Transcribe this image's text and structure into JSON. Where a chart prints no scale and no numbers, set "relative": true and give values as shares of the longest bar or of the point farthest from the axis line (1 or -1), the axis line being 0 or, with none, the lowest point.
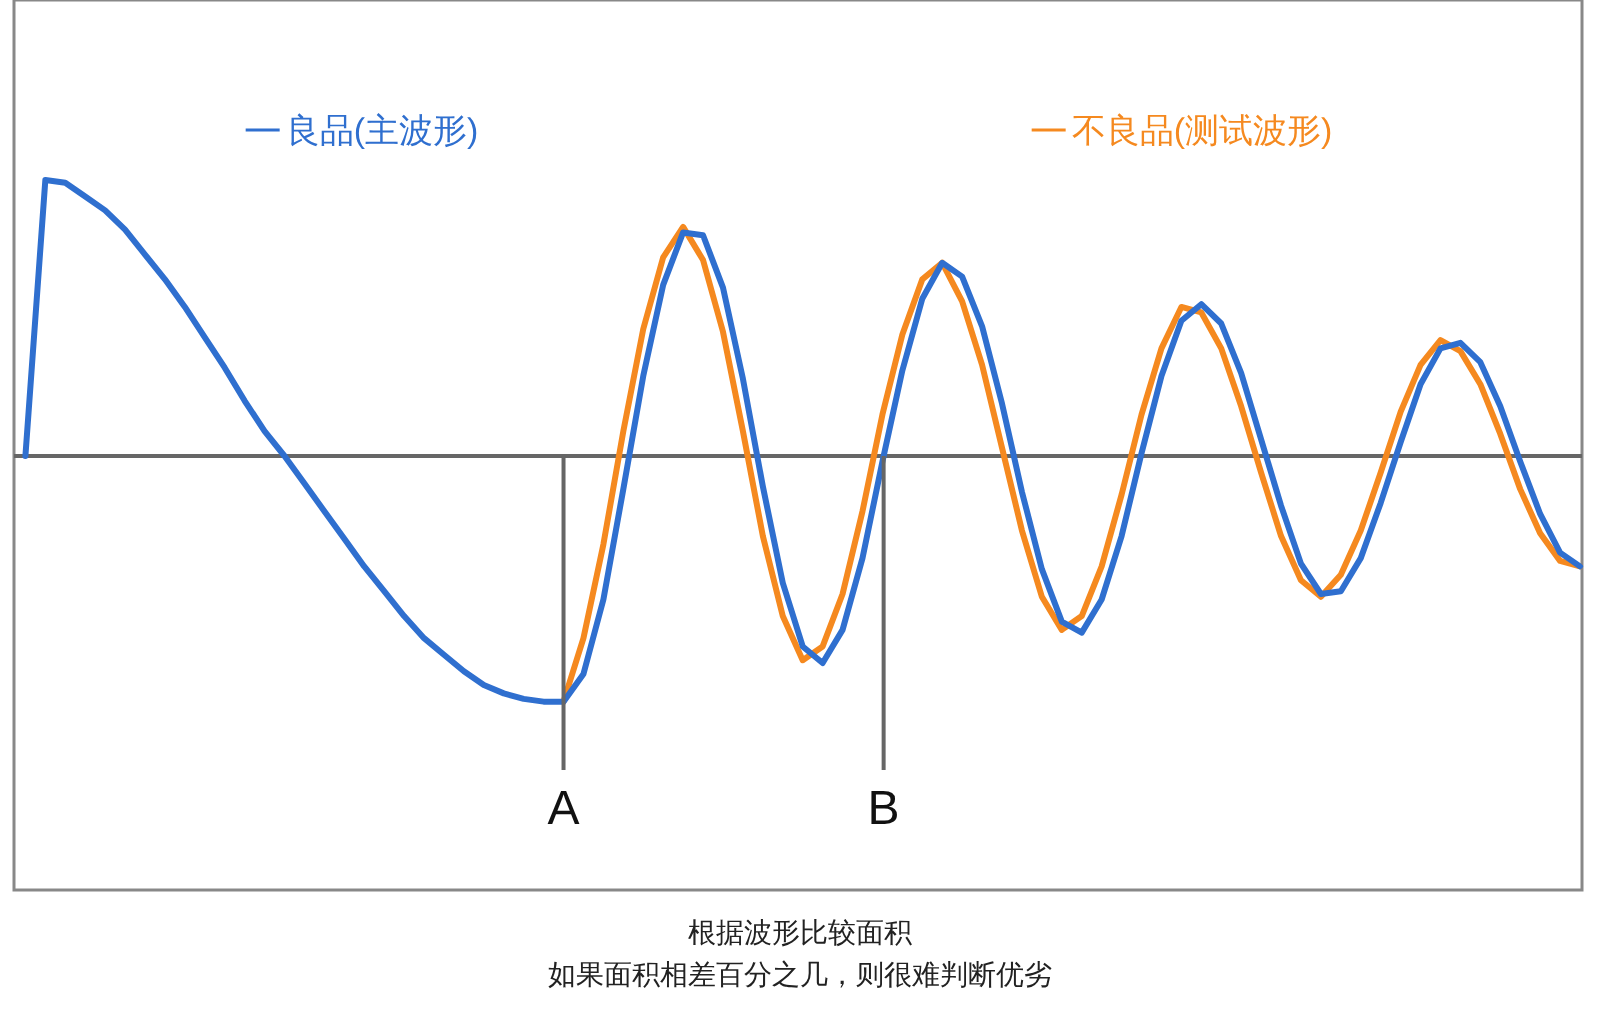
{
  "chart_data": {
    "type": "line",
    "relative": true,
    "legend": "top",
    "line_style": "solid",
    "categories": [
      null,
      null,
      null,
      null,
      null,
      null,
      null,
      null,
      null,
      null,
      null,
      null,
      null,
      null,
      null,
      null,
      null,
      null,
      null,
      null,
      null,
      null,
      null,
      null,
      null,
      null,
      null,
      null,
      null,
      null,
      null,
      null,
      null,
      null,
      null,
      null,
      null,
      null,
      null,
      null,
      null,
      null,
      null,
      null,
      null,
      null,
      null,
      null,
      null,
      null,
      null,
      null,
      null,
      null,
      null,
      null,
      null,
      null,
      null,
      null,
      null,
      null,
      null,
      null,
      null,
      null,
      null,
      null,
      null,
      null,
      null,
      null,
      null,
      null,
      null,
      null,
      null,
      null,
      null
    ],
    "series": [
      {
        "name": "良品(主波形)",
        "color": "#2f6fcf",
        "values": [
          0,
          1.0,
          0.99,
          0.94,
          0.89,
          0.82,
          0.73,
          0.64,
          0.54,
          0.43,
          0.32,
          0.2,
          0.09,
          0.0,
          -0.1,
          -0.2,
          -0.3,
          -0.4,
          -0.49,
          -0.58,
          -0.66,
          -0.72,
          -0.78,
          -0.83,
          -0.86,
          -0.88,
          -0.89,
          -0.89,
          -0.79,
          -0.52,
          -0.12,
          0.29,
          0.62,
          0.81,
          0.8,
          0.61,
          0.28,
          -0.11,
          -0.46,
          -0.69,
          -0.75,
          -0.63,
          -0.37,
          -0.02,
          0.31,
          0.57,
          0.7,
          0.65,
          0.47,
          0.19,
          -0.13,
          -0.41,
          -0.6,
          -0.64,
          -0.52,
          -0.29,
          0.01,
          0.29,
          0.49,
          0.55,
          0.48,
          0.3,
          0.06,
          -0.18,
          -0.39,
          -0.5,
          -0.49,
          -0.37,
          -0.17,
          0.05,
          0.26,
          0.39,
          0.41,
          0.34,
          0.18,
          -0.02,
          -0.21,
          -0.35,
          -0.4
        ]
      },
      {
        "name": "不良品(测试波形)",
        "color": "#f5891f",
        "values": [
          null,
          null,
          null,
          null,
          null,
          null,
          null,
          null,
          null,
          null,
          null,
          null,
          null,
          null,
          null,
          null,
          null,
          null,
          null,
          null,
          null,
          null,
          null,
          null,
          null,
          null,
          null,
          -0.89,
          -0.66,
          -0.32,
          0.09,
          0.46,
          0.72,
          0.83,
          0.71,
          0.45,
          0.09,
          -0.29,
          -0.58,
          -0.74,
          -0.69,
          -0.5,
          -0.2,
          0.15,
          0.44,
          0.64,
          0.7,
          0.56,
          0.33,
          0.03,
          -0.27,
          -0.51,
          -0.63,
          -0.58,
          -0.4,
          -0.14,
          0.15,
          0.39,
          0.54,
          0.52,
          0.39,
          0.18,
          -0.06,
          -0.29,
          -0.45,
          -0.51,
          -0.43,
          -0.27,
          -0.06,
          0.16,
          0.33,
          0.42,
          0.38,
          0.26,
          0.08,
          -0.12,
          -0.28,
          -0.38,
          -0.4
        ]
      }
    ],
    "annotations": [
      "A",
      "B",
      "根据波形比较面积",
      "如果面积相差百分之几，则很难判断优劣"
    ]
  }
}
